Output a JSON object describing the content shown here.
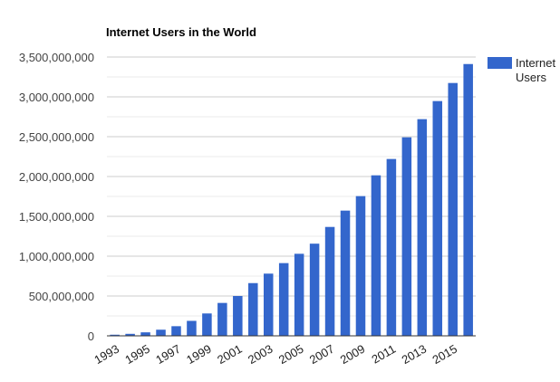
{
  "chart_data": {
    "type": "bar",
    "title": "Internet Users in the World",
    "xlabel": "",
    "ylabel": "",
    "ylim": [
      0,
      3500000000
    ],
    "yticks": [
      "0",
      "500,000,000",
      "1,000,000,000",
      "1,500,000,000",
      "2,000,000,000",
      "2,500,000,000",
      "3,000,000,000",
      "3,500,000,000"
    ],
    "xtick_labels": [
      "1993",
      "1995",
      "1997",
      "1999",
      "2001",
      "2003",
      "2005",
      "2007",
      "2009",
      "2011",
      "2013",
      "2015"
    ],
    "categories": [
      "1993",
      "1994",
      "1995",
      "1996",
      "1997",
      "1998",
      "1999",
      "2000",
      "2001",
      "2002",
      "2003",
      "2004",
      "2005",
      "2006",
      "2007",
      "2008",
      "2009",
      "2010",
      "2011",
      "2012",
      "2013",
      "2014",
      "2015",
      "2016"
    ],
    "series": [
      {
        "name": "Internet Users",
        "color": "#3366cc",
        "values": [
          14000000,
          25000000,
          44000000,
          77000000,
          121000000,
          188000000,
          281000000,
          413000000,
          500000000,
          662000000,
          781000000,
          913000000,
          1030000000,
          1157000000,
          1367000000,
          1572000000,
          1754000000,
          2015000000,
          2220000000,
          2492000000,
          2720000000,
          2947000000,
          3174000000,
          3412000000
        ]
      }
    ],
    "grid": true,
    "legend": "right"
  }
}
